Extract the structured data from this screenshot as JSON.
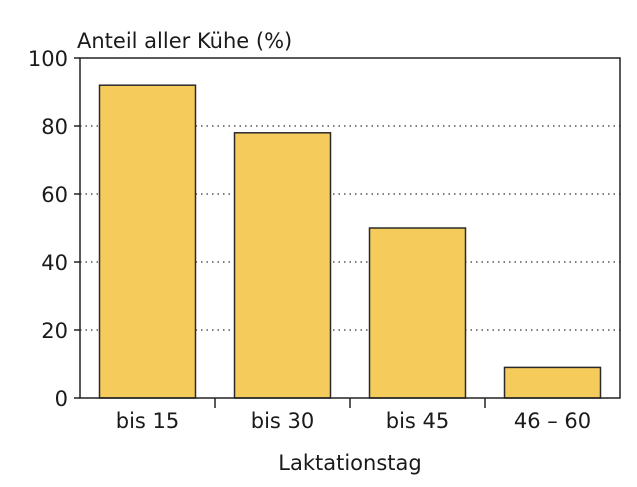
{
  "chart_data": {
    "type": "bar",
    "title": "",
    "ylabel": "Anteil aller Kühe (%)",
    "xlabel": "Laktationstag",
    "categories": [
      "bis 15",
      "bis 30",
      "bis 45",
      "46 – 60"
    ],
    "values": [
      92,
      78,
      50,
      9
    ],
    "ylim": [
      0,
      100
    ],
    "yticks": [
      "0",
      "20",
      "40",
      "60",
      "80",
      "100"
    ],
    "grid": "horizontal dotted",
    "colors": {
      "bar": "#f5cb5c",
      "bar_stroke": "#2a2a2a",
      "grid": "#555555",
      "background": "#ffffff"
    }
  }
}
